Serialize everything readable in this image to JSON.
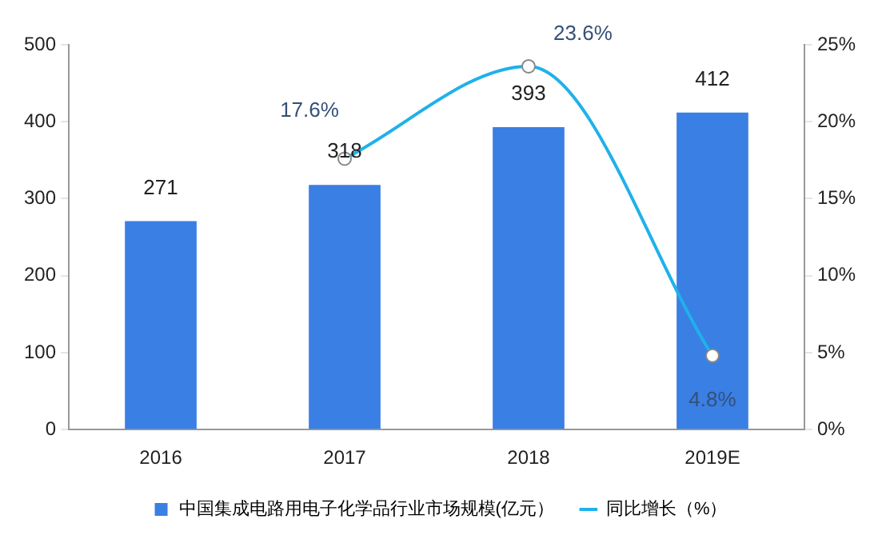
{
  "chart_data": {
    "type": "bar",
    "categories": [
      "2016",
      "2017",
      "2018",
      "2019E"
    ],
    "series": [
      {
        "name": "中国集成电路用电子化学品行业市场规模(亿元）",
        "color": "#3a7fe3",
        "values": [
          271,
          318,
          393,
          412
        ]
      },
      {
        "name": "同比增长（%）",
        "type": "line",
        "axis": "y2",
        "color": "#1fb1ea",
        "values": [
          null,
          17.6,
          23.6,
          4.8
        ],
        "value_labels": [
          null,
          "17.6%",
          "23.6%",
          "4.8%"
        ]
      }
    ],
    "ylim": [
      0,
      500
    ],
    "yticks": [
      0,
      100,
      200,
      300,
      400,
      500
    ],
    "y2lim": [
      0,
      25
    ],
    "y2ticks": [
      {
        "value": 0,
        "label": "0%"
      },
      {
        "value": 5,
        "label": "5%"
      },
      {
        "value": 10,
        "label": "10%"
      },
      {
        "value": 15,
        "label": "15%"
      },
      {
        "value": 20,
        "label": "20%"
      },
      {
        "value": 25,
        "label": "25%"
      }
    ],
    "data_labels": true,
    "legend": "bottom",
    "grid": false,
    "marker": "circle",
    "line_style": "solid"
  }
}
